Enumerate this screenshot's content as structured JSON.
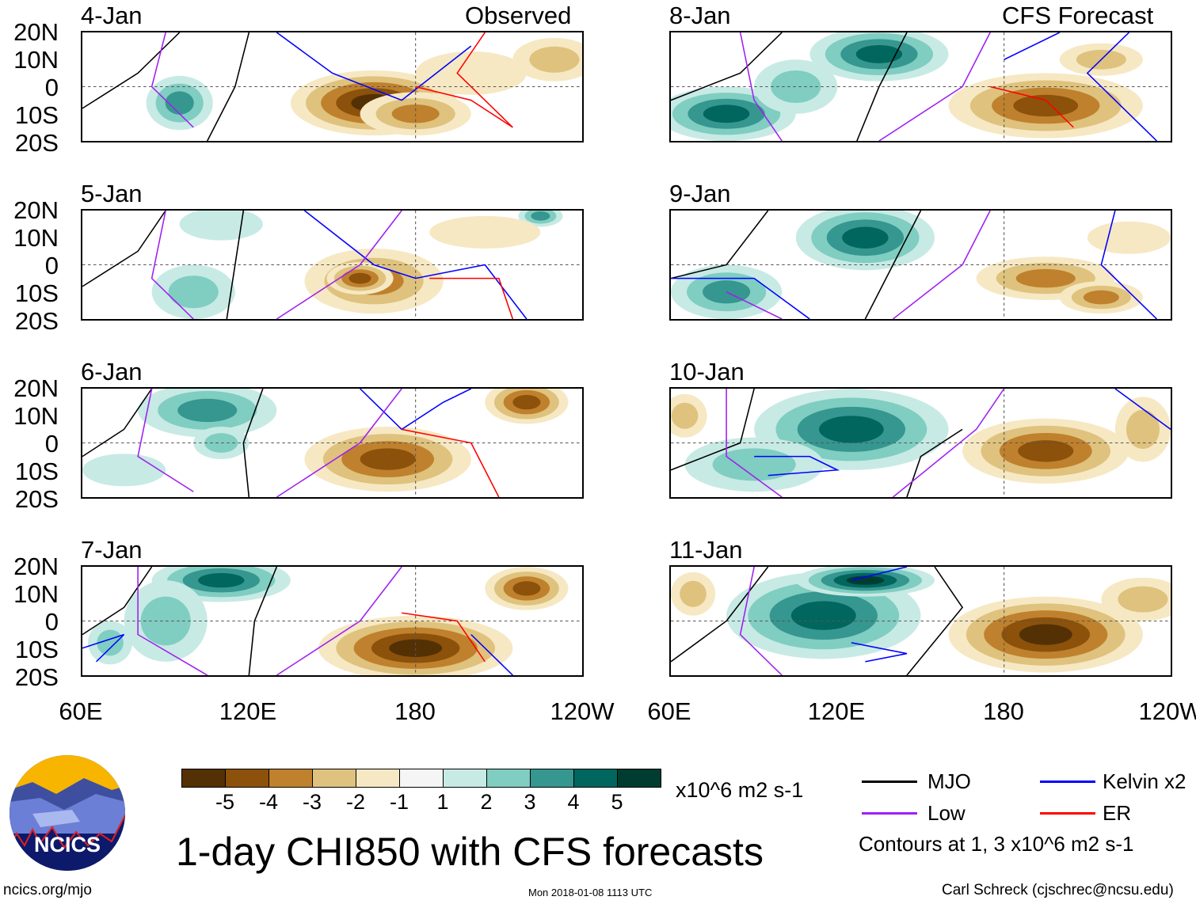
{
  "headers": {
    "observed": "Observed",
    "forecast": "CFS Forecast"
  },
  "panels": [
    {
      "date": "4-Jan",
      "group": "observed"
    },
    {
      "date": "5-Jan",
      "group": "observed"
    },
    {
      "date": "6-Jan",
      "group": "observed"
    },
    {
      "date": "7-Jan",
      "group": "observed"
    },
    {
      "date": "8-Jan",
      "group": "forecast"
    },
    {
      "date": "9-Jan",
      "group": "forecast"
    },
    {
      "date": "10-Jan",
      "group": "forecast"
    },
    {
      "date": "11-Jan",
      "group": "forecast"
    }
  ],
  "lat_labels": [
    "20N",
    "10N",
    "0",
    "10S",
    "20S"
  ],
  "lon_labels": [
    "60E",
    "120E",
    "180",
    "120W"
  ],
  "colorbar": {
    "ticks": [
      "-5",
      "-4",
      "-3",
      "-2",
      "-1",
      "1",
      "2",
      "3",
      "4",
      "5"
    ],
    "units": "x10^6 m2 s-1",
    "colors": [
      "#543005",
      "#8c510a",
      "#bf812d",
      "#dfc27d",
      "#f6e8c3",
      "#f5f5f5",
      "#c7eae5",
      "#80cdc1",
      "#35978f",
      "#01665e",
      "#003c30"
    ]
  },
  "legend": {
    "items": [
      {
        "label": "MJO",
        "color": "#000000"
      },
      {
        "label": "Kelvin x2",
        "color": "#0000ff"
      },
      {
        "label": "Low",
        "color": "#a020f0"
      },
      {
        "label": "ER",
        "color": "#ff0000"
      }
    ],
    "note": "Contours at 1, 3 x10^6 m2 s-1"
  },
  "title": "1-day CHI850 with CFS forecasts",
  "logo_text": "NCICS",
  "footer": {
    "url": "ncics.org/mjo",
    "timestamp": "Mon 2018-01-08 1113 UTC",
    "author": "Carl Schreck (cjschrec@ncsu.edu)"
  }
}
